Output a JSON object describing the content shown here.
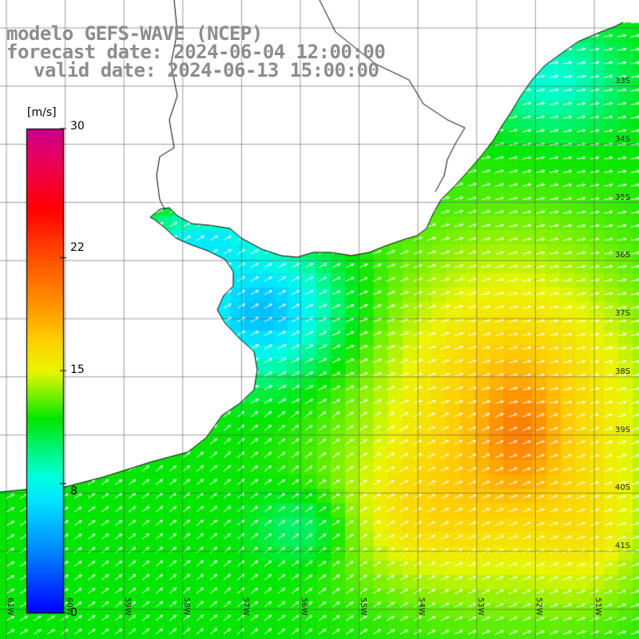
{
  "title": {
    "line1": "modelo GEFS-WAVE (NCEP)",
    "line2": "forecast date: 2024-06-04 12:00:00",
    "line3": "valid date: 2024-06-13 15:00:00"
  },
  "colorbar": {
    "unit": "[m/s]",
    "min": 0,
    "max": 30,
    "tick_labels": [
      "30",
      "22",
      "15",
      "8",
      "0"
    ],
    "tick_values": [
      30,
      22,
      15,
      8,
      0
    ]
  },
  "axes": {
    "lat_labels": [
      "33S",
      "34S",
      "35S",
      "36S",
      "37S",
      "38S",
      "39S",
      "40S",
      "41S"
    ],
    "lat_values": [
      -33,
      -34,
      -35,
      -36,
      -37,
      -38,
      -39,
      -40,
      -41
    ],
    "lon_labels": [
      "61W",
      "60W",
      "59W",
      "58W",
      "57W",
      "56W",
      "55W",
      "54W",
      "53W",
      "52W",
      "51W"
    ],
    "lon_values": [
      -61,
      -60,
      -59,
      -58,
      -57,
      -56,
      -55,
      -54,
      -53,
      -52,
      -51
    ]
  },
  "map": {
    "grid": true,
    "field": "wind speed with direction arrows",
    "arrow_color": "#ffffff",
    "land_color": "#ffffff",
    "coast_color": "#000000",
    "regions": [
      {
        "name": "Rio de la Plata estuary",
        "level": "low (about 5-9 m/s)"
      },
      {
        "name": "Uruguayan coast",
        "level": "moderate (about 10-13 m/s)"
      },
      {
        "name": "open Atlantic south-east",
        "level": "high (about 14-18 m/s)"
      },
      {
        "name": "maximum near 38S 52W",
        "level": "about 18-19 m/s"
      }
    ]
  }
}
